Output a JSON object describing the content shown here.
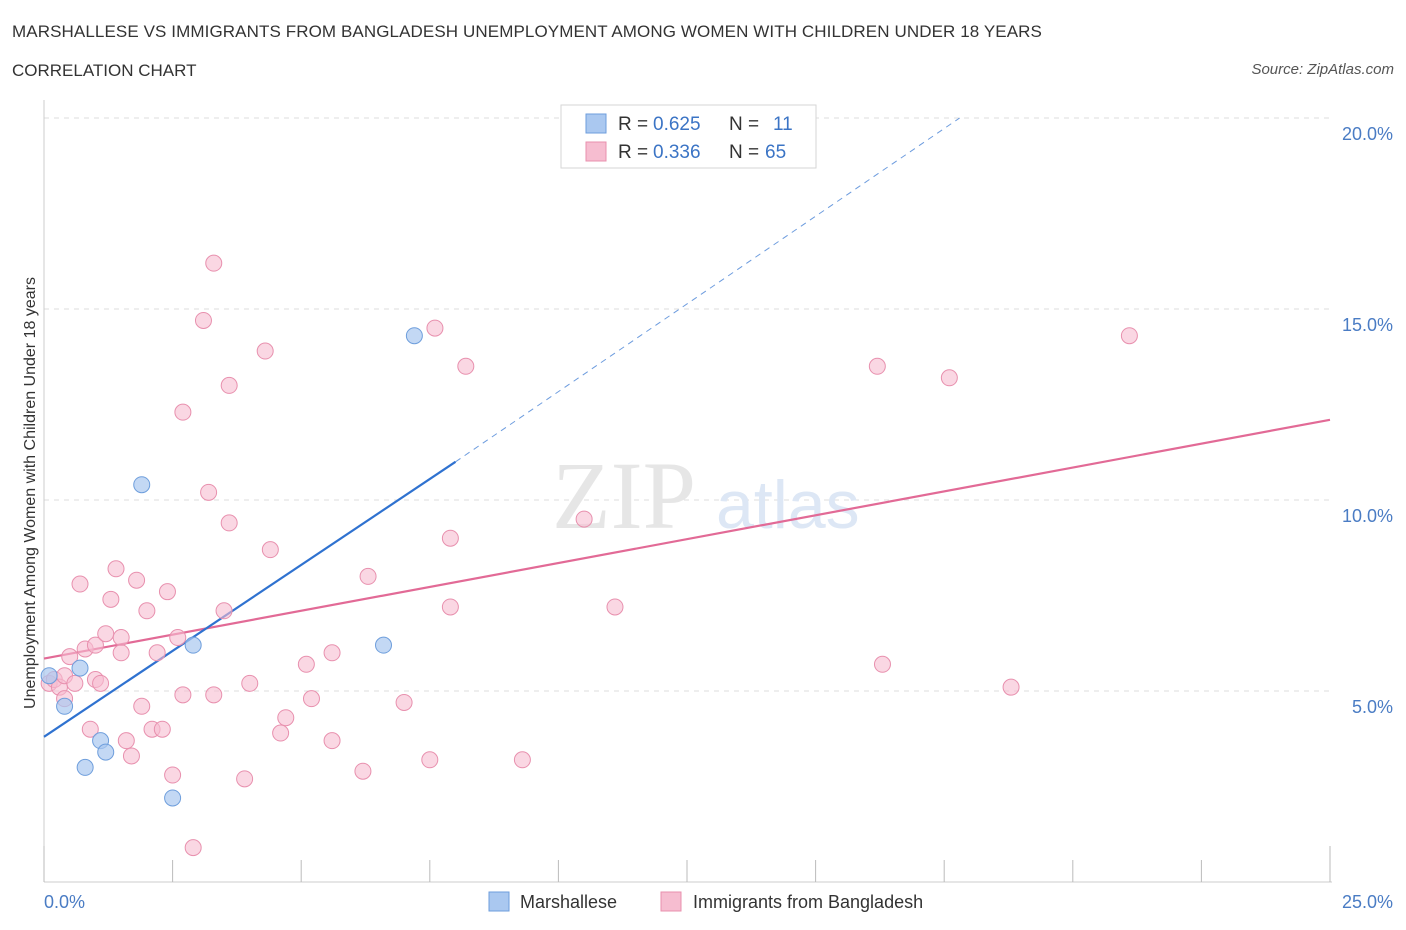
{
  "title": "MARSHALLESE VS IMMIGRANTS FROM BANGLADESH UNEMPLOYMENT AMONG WOMEN WITH CHILDREN UNDER 18 YEARS",
  "subtitle": "CORRELATION CHART",
  "source": "Source: ZipAtlas.com",
  "watermark": {
    "zip": "ZIP",
    "atlas": "atlas"
  },
  "colors": {
    "blue_fill": "#aac8f0",
    "blue_stroke": "#6e9edc",
    "blue_line": "#2f72d0",
    "pink_fill": "#f6bdd0",
    "pink_stroke": "#e890ae",
    "pink_line": "#e26a96",
    "tick": "#4a7cc4",
    "grid": "#dddddd"
  },
  "legend": {
    "r_label": "R =",
    "n_label": "N =",
    "series": [
      {
        "r": "0.625",
        "n": "11"
      },
      {
        "r": "0.336",
        "n": "65"
      }
    ]
  },
  "chart_data": {
    "type": "scatter",
    "xlabel": "",
    "ylabel": "Unemployment Among Women with Children Under 18 years",
    "xlim": [
      0,
      25
    ],
    "ylim": [
      0,
      20
    ],
    "x_tick_labels": [
      "0.0%",
      "25.0%"
    ],
    "y_ticks": [
      5,
      10,
      15,
      20
    ],
    "y_tick_labels": [
      "5.0%",
      "10.0%",
      "15.0%",
      "20.0%"
    ],
    "grid": true,
    "legend_position": "top-center",
    "series": [
      {
        "name": "Marshallese",
        "points": [
          [
            0.1,
            5.4
          ],
          [
            0.4,
            4.6
          ],
          [
            0.7,
            5.6
          ],
          [
            0.8,
            3.0
          ],
          [
            1.1,
            3.7
          ],
          [
            1.2,
            3.4
          ],
          [
            1.9,
            10.4
          ],
          [
            2.5,
            2.2
          ],
          [
            2.9,
            6.2
          ],
          [
            6.6,
            6.2
          ],
          [
            7.2,
            14.3
          ]
        ],
        "trend": {
          "x0": 0,
          "y0": 3.8,
          "x1": 8.0,
          "y1": 11.0,
          "x_dash_end": 17.8,
          "y_dash_end": 20.0
        }
      },
      {
        "name": "Immigrants from Bangladesh",
        "points": [
          [
            0.1,
            5.2
          ],
          [
            0.2,
            5.3
          ],
          [
            0.3,
            5.1
          ],
          [
            0.4,
            5.4
          ],
          [
            0.4,
            4.8
          ],
          [
            0.5,
            5.9
          ],
          [
            0.6,
            5.2
          ],
          [
            0.7,
            7.8
          ],
          [
            0.8,
            6.1
          ],
          [
            0.9,
            4.0
          ],
          [
            1.0,
            5.3
          ],
          [
            1.0,
            6.2
          ],
          [
            1.1,
            5.2
          ],
          [
            1.2,
            6.5
          ],
          [
            1.3,
            7.4
          ],
          [
            1.4,
            8.2
          ],
          [
            1.5,
            6.4
          ],
          [
            1.5,
            6.0
          ],
          [
            1.6,
            3.7
          ],
          [
            1.7,
            3.3
          ],
          [
            1.8,
            7.9
          ],
          [
            1.9,
            4.6
          ],
          [
            2.0,
            7.1
          ],
          [
            2.1,
            4.0
          ],
          [
            2.2,
            6.0
          ],
          [
            2.3,
            4.0
          ],
          [
            2.4,
            7.6
          ],
          [
            2.5,
            2.8
          ],
          [
            2.6,
            6.4
          ],
          [
            2.7,
            4.9
          ],
          [
            2.7,
            12.3
          ],
          [
            2.9,
            0.9
          ],
          [
            3.1,
            14.7
          ],
          [
            3.2,
            10.2
          ],
          [
            3.3,
            4.9
          ],
          [
            3.3,
            16.2
          ],
          [
            3.5,
            7.1
          ],
          [
            3.6,
            9.4
          ],
          [
            3.6,
            13.0
          ],
          [
            3.9,
            2.7
          ],
          [
            4.0,
            5.2
          ],
          [
            4.3,
            13.9
          ],
          [
            4.4,
            8.7
          ],
          [
            4.6,
            3.9
          ],
          [
            4.7,
            4.3
          ],
          [
            5.1,
            5.7
          ],
          [
            5.2,
            4.8
          ],
          [
            5.6,
            6.0
          ],
          [
            5.6,
            3.7
          ],
          [
            6.2,
            2.9
          ],
          [
            6.3,
            8.0
          ],
          [
            7.0,
            4.7
          ],
          [
            7.5,
            3.2
          ],
          [
            7.6,
            14.5
          ],
          [
            7.9,
            7.2
          ],
          [
            7.9,
            9.0
          ],
          [
            8.2,
            13.5
          ],
          [
            9.3,
            3.2
          ],
          [
            10.5,
            9.5
          ],
          [
            11.1,
            7.2
          ],
          [
            16.2,
            13.5
          ],
          [
            16.3,
            5.7
          ],
          [
            17.6,
            13.2
          ],
          [
            18.8,
            5.1
          ],
          [
            21.1,
            14.3
          ]
        ],
        "trend": {
          "x0": 0,
          "y0": 5.85,
          "x1": 25,
          "y1": 12.1
        }
      }
    ]
  }
}
